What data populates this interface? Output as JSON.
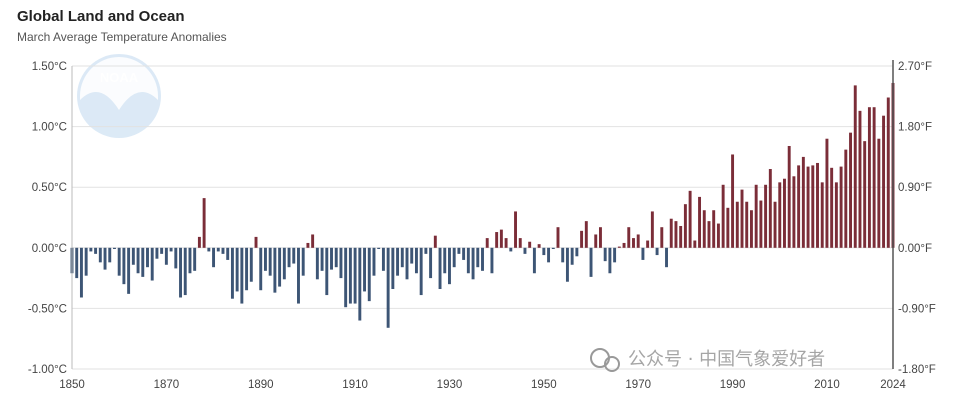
{
  "chart_data": {
    "type": "bar",
    "title": "Global Land and Ocean",
    "subtitle": "March Average Temperature Anomalies",
    "xlabel": "",
    "ylabel": "",
    "x_start": 1850,
    "x_end": 2024,
    "ylim": [
      -1.0,
      1.5
    ],
    "y_ticks_left": [
      "1.50°C",
      "1.00°C",
      "0.50°C",
      "0.00°C",
      "-0.50°C",
      "-1.00°C"
    ],
    "y_ticks_right": [
      "2.70°F",
      "1.80°F",
      "0.90°F",
      "0.00°F",
      "-0.90°F",
      "-1.80°F"
    ],
    "x_ticks": [
      "1850",
      "1870",
      "1890",
      "1910",
      "1930",
      "1950",
      "1970",
      "1990",
      "2010",
      "2024"
    ],
    "grid": true,
    "colors": {
      "positive": "#7b2d38",
      "negative": "#3d5575",
      "grid": "#e2e2e2",
      "axis": "#555555"
    },
    "values": [
      -0.21,
      -0.25,
      -0.41,
      -0.23,
      -0.03,
      -0.05,
      -0.12,
      -0.18,
      -0.12,
      -0.01,
      -0.23,
      -0.3,
      -0.38,
      -0.14,
      -0.21,
      -0.24,
      -0.16,
      -0.27,
      -0.09,
      -0.05,
      -0.14,
      -0.03,
      -0.17,
      -0.41,
      -0.39,
      -0.21,
      -0.19,
      0.09,
      0.41,
      -0.03,
      -0.16,
      -0.03,
      -0.05,
      -0.1,
      -0.42,
      -0.36,
      -0.46,
      -0.35,
      -0.28,
      0.09,
      -0.35,
      -0.19,
      -0.23,
      -0.37,
      -0.32,
      -0.26,
      -0.16,
      -0.13,
      -0.46,
      -0.23,
      0.04,
      0.11,
      -0.26,
      -0.19,
      -0.39,
      -0.18,
      -0.16,
      -0.25,
      -0.49,
      -0.46,
      -0.46,
      -0.6,
      -0.36,
      -0.44,
      -0.23,
      -0.01,
      -0.19,
      -0.66,
      -0.34,
      -0.23,
      -0.16,
      -0.26,
      -0.13,
      -0.21,
      -0.39,
      -0.05,
      -0.25,
      0.1,
      -0.34,
      -0.21,
      -0.3,
      -0.16,
      -0.05,
      -0.1,
      -0.21,
      -0.26,
      -0.16,
      -0.19,
      0.08,
      -0.21,
      0.13,
      0.15,
      0.08,
      -0.03,
      0.3,
      0.08,
      -0.05,
      0.05,
      -0.21,
      0.03,
      -0.06,
      -0.12,
      -0.01,
      0.17,
      -0.12,
      -0.28,
      -0.14,
      -0.07,
      0.14,
      0.22,
      -0.24,
      0.11,
      0.17,
      -0.11,
      -0.21,
      -0.12,
      0.01,
      0.04,
      0.17,
      0.08,
      0.11,
      -0.1,
      0.06,
      0.3,
      -0.06,
      0.17,
      -0.16,
      0.24,
      0.22,
      0.18,
      0.36,
      0.47,
      0.06,
      0.42,
      0.31,
      0.22,
      0.31,
      0.2,
      0.52,
      0.33,
      0.77,
      0.38,
      0.48,
      0.38,
      0.31,
      0.52,
      0.39,
      0.52,
      0.65,
      0.38,
      0.54,
      0.57,
      0.84,
      0.59,
      0.68,
      0.75,
      0.67,
      0.68,
      0.7,
      0.54,
      0.9,
      0.66,
      0.54,
      0.67,
      0.81,
      0.95,
      1.34,
      1.13,
      0.88,
      1.16,
      1.16,
      0.9,
      1.09,
      1.24,
      1.36
    ]
  },
  "watermarks": {
    "logo": "NOAA",
    "text": "公众号 · 中国气象爱好者"
  }
}
